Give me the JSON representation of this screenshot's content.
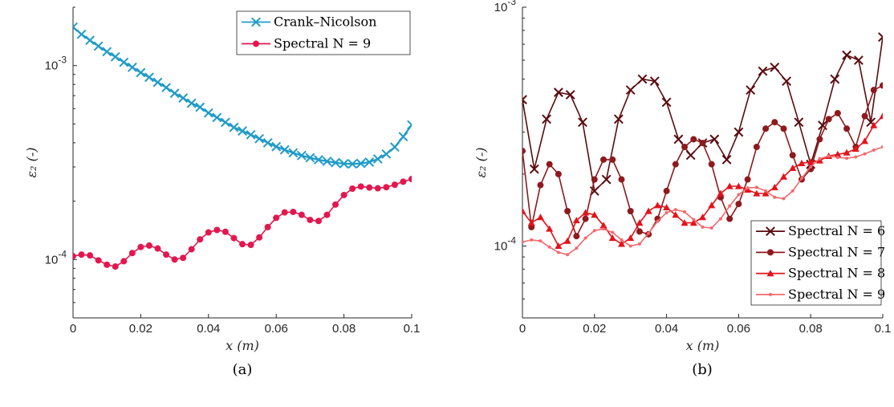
{
  "chart_data": [
    {
      "type": "line",
      "panel_label": "(a)",
      "title": "",
      "xlabel": "x (m)",
      "ylabel": "ε₂ (-)",
      "xlim": [
        0,
        0.1
      ],
      "ylim": [
        5e-05,
        0.002
      ],
      "yscale": "log",
      "grid": false,
      "legend": "top-right",
      "xticks": [
        "0",
        "0.02",
        "0.04",
        "0.06",
        "0.08",
        "0.1"
      ],
      "yticks": [
        {
          "base": "10",
          "exp": "-4",
          "value": 0.0001
        },
        {
          "base": "10",
          "exp": "-3",
          "value": 0.001
        }
      ],
      "series": [
        {
          "name": "Crank–Nicolson",
          "color": "#1f9bc7",
          "marker": "x",
          "x": [
            0,
            0.0025,
            0.005,
            0.0075,
            0.01,
            0.0125,
            0.015,
            0.0175,
            0.02,
            0.0225,
            0.025,
            0.0275,
            0.03,
            0.0325,
            0.035,
            0.0375,
            0.04,
            0.0425,
            0.045,
            0.0475,
            0.05,
            0.0525,
            0.055,
            0.0575,
            0.06,
            0.0625,
            0.065,
            0.0675,
            0.07,
            0.0725,
            0.075,
            0.0775,
            0.08,
            0.0825,
            0.085,
            0.0875,
            0.09,
            0.0925,
            0.095,
            0.0975,
            0.1
          ],
          "y": [
            0.00158,
            0.00145,
            0.00135,
            0.00126,
            0.00118,
            0.00111,
            0.00104,
            0.00098,
            0.00092,
            0.00087,
            0.00082,
            0.00077,
            0.00072,
            0.00068,
            0.00064,
            0.00061,
            0.00057,
            0.00054,
            0.00051,
            0.00048,
            0.00046,
            0.00044,
            0.00042,
            0.0004,
            0.000382,
            0.000368,
            0.000355,
            0.000344,
            0.000335,
            0.000327,
            0.000321,
            0.000316,
            0.000312,
            0.000311,
            0.000313,
            0.000318,
            0.00033,
            0.00035,
            0.00038,
            0.00043,
            0.000495
          ]
        },
        {
          "name": "Spectral N = 9",
          "color": "#e3174e",
          "marker": "o",
          "x": [
            0,
            0.0025,
            0.005,
            0.0075,
            0.01,
            0.0125,
            0.015,
            0.0175,
            0.02,
            0.0225,
            0.025,
            0.0275,
            0.03,
            0.0325,
            0.035,
            0.0375,
            0.04,
            0.0425,
            0.045,
            0.0475,
            0.05,
            0.0525,
            0.055,
            0.0575,
            0.06,
            0.0625,
            0.065,
            0.0675,
            0.07,
            0.0725,
            0.075,
            0.0775,
            0.08,
            0.0825,
            0.085,
            0.0875,
            0.09,
            0.0925,
            0.095,
            0.0975,
            0.1
          ],
          "y": [
            0.000104,
            0.000106,
            0.000105,
            9.9e-05,
            9.4e-05,
            9.2e-05,
            9.8e-05,
            0.000108,
            0.000116,
            0.000118,
            0.000114,
            0.000106,
            0.0001,
            0.000102,
            0.000113,
            0.000127,
            0.000138,
            0.000142,
            0.000139,
            0.000129,
            0.00012,
            0.000119,
            0.00013,
            0.000147,
            0.000164,
            0.000175,
            0.000176,
            0.00017,
            0.00016,
            0.000158,
            0.00017,
            0.000192,
            0.000215,
            0.000232,
            0.000238,
            0.000235,
            0.000233,
            0.000236,
            0.000243,
            0.000252,
            0.00026
          ]
        }
      ]
    },
    {
      "type": "line",
      "panel_label": "(b)",
      "title": "",
      "xlabel": "x (m)",
      "ylabel": "ε₂ (-)",
      "xlim": [
        0,
        0.1
      ],
      "ylim": [
        5e-05,
        0.001
      ],
      "yscale": "log",
      "grid": false,
      "legend": "bottom-right",
      "xticks": [
        "0",
        "0.02",
        "0.04",
        "0.06",
        "0.08",
        "0.1"
      ],
      "yticks": [
        {
          "base": "10",
          "exp": "-4",
          "value": 0.0001
        },
        {
          "base": "10",
          "exp": "-3",
          "value": 0.001
        }
      ],
      "series": [
        {
          "name": "Spectral N = 6",
          "color": "#5a0c10",
          "marker": "x",
          "x": [
            0,
            0.0033,
            0.0067,
            0.01,
            0.0133,
            0.0167,
            0.02,
            0.0233,
            0.0267,
            0.03,
            0.0333,
            0.0367,
            0.04,
            0.0433,
            0.0467,
            0.05,
            0.0533,
            0.0567,
            0.06,
            0.0633,
            0.0667,
            0.07,
            0.0733,
            0.0767,
            0.08,
            0.0833,
            0.0867,
            0.09,
            0.0933,
            0.0967,
            0.1
          ],
          "y": [
            0.00041,
            0.00021,
            0.00034,
            0.00044,
            0.00043,
            0.00033,
            0.00017,
            0.00019,
            0.00034,
            0.00045,
            0.0005,
            0.00049,
            0.0004,
            0.00028,
            0.00024,
            0.00027,
            0.00028,
            0.00023,
            0.0003,
            0.00045,
            0.00054,
            0.00056,
            0.00049,
            0.00033,
            0.00022,
            0.00032,
            0.0005,
            0.00063,
            0.0006,
            0.00033,
            0.00075
          ]
        },
        {
          "name": "Spectral N = 7",
          "color": "#8e1a1e",
          "marker": "o",
          "x": [
            0,
            0.0025,
            0.005,
            0.0075,
            0.01,
            0.0125,
            0.015,
            0.0175,
            0.02,
            0.0225,
            0.025,
            0.0275,
            0.03,
            0.0325,
            0.035,
            0.0375,
            0.04,
            0.0425,
            0.045,
            0.0475,
            0.05,
            0.0525,
            0.055,
            0.0575,
            0.06,
            0.0625,
            0.065,
            0.0675,
            0.07,
            0.0725,
            0.075,
            0.0775,
            0.08,
            0.0825,
            0.085,
            0.0875,
            0.09,
            0.0925,
            0.095,
            0.0975,
            0.1
          ],
          "y": [
            0.00025,
            0.00012,
            0.00018,
            0.00022,
            0.0002,
            0.00014,
            0.00011,
            0.00013,
            0.00019,
            0.00023,
            0.00023,
            0.00019,
            0.00014,
            0.000115,
            0.000112,
            0.00013,
            0.00017,
            0.00022,
            0.00026,
            0.00028,
            0.00027,
            0.00022,
            0.00016,
            0.00013,
            0.00015,
            0.00019,
            0.00026,
            0.00031,
            0.00033,
            0.00031,
            0.00024,
            0.00019,
            0.00021,
            0.00028,
            0.00034,
            0.00036,
            0.00031,
            0.00026,
            0.00035,
            0.00045,
            0.00047
          ]
        },
        {
          "name": "Spectral N = 8",
          "color": "#e2141c",
          "marker": "^",
          "x": [
            0,
            0.0025,
            0.005,
            0.0075,
            0.01,
            0.0125,
            0.015,
            0.0175,
            0.02,
            0.0225,
            0.025,
            0.0275,
            0.03,
            0.0325,
            0.035,
            0.0375,
            0.04,
            0.0425,
            0.045,
            0.0475,
            0.05,
            0.0525,
            0.055,
            0.0575,
            0.06,
            0.0625,
            0.065,
            0.0675,
            0.07,
            0.0725,
            0.075,
            0.0775,
            0.08,
            0.0825,
            0.085,
            0.0875,
            0.09,
            0.0925,
            0.095,
            0.0975,
            0.1
          ],
          "y": [
            0.00014,
            0.000125,
            0.000132,
            0.000118,
            0.0001,
            0.000105,
            0.000128,
            0.000138,
            0.000135,
            0.000122,
            0.000108,
            0.000102,
            0.000108,
            0.000125,
            0.00014,
            0.000148,
            0.000145,
            0.000135,
            0.000125,
            0.000125,
            0.000132,
            0.000148,
            0.000166,
            0.000178,
            0.000178,
            0.000172,
            0.000166,
            0.000166,
            0.000176,
            0.000195,
            0.000212,
            0.000222,
            0.000225,
            0.000228,
            0.000238,
            0.000242,
            0.000246,
            0.000255,
            0.000275,
            0.00032,
            0.00035
          ]
        },
        {
          "name": "Spectral N = 9",
          "color": "#f26a6e",
          "marker": ".",
          "x": [
            0,
            0.0025,
            0.005,
            0.0075,
            0.01,
            0.0125,
            0.015,
            0.0175,
            0.02,
            0.0225,
            0.025,
            0.0275,
            0.03,
            0.0325,
            0.035,
            0.0375,
            0.04,
            0.0425,
            0.045,
            0.0475,
            0.05,
            0.0525,
            0.055,
            0.0575,
            0.06,
            0.0625,
            0.065,
            0.0675,
            0.07,
            0.0725,
            0.075,
            0.0775,
            0.08,
            0.0825,
            0.085,
            0.0875,
            0.09,
            0.0925,
            0.095,
            0.0975,
            0.1
          ],
          "y": [
            0.000104,
            0.000106,
            0.000105,
            9.9e-05,
            9.4e-05,
            9.2e-05,
            9.8e-05,
            0.000108,
            0.000116,
            0.000118,
            0.000114,
            0.000106,
            0.0001,
            0.000102,
            0.000113,
            0.000127,
            0.000138,
            0.000142,
            0.000139,
            0.000129,
            0.00012,
            0.000119,
            0.00013,
            0.000147,
            0.000164,
            0.000175,
            0.000176,
            0.00017,
            0.00016,
            0.000158,
            0.00017,
            0.000192,
            0.000215,
            0.000232,
            0.000238,
            0.000235,
            0.000233,
            0.000236,
            0.000243,
            0.000252,
            0.00026
          ]
        }
      ]
    }
  ]
}
